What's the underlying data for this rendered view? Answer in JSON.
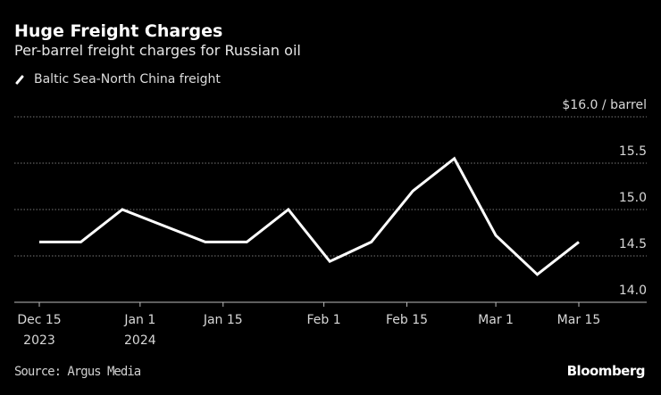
{
  "header": {
    "title": "Huge Freight Charges",
    "subtitle": "Per-barrel freight charges for Russian oil"
  },
  "footer": {
    "source": "Source: Argus Media",
    "logo": "Bloomberg"
  },
  "colors": {
    "background": "#000000",
    "line": "#ffffff",
    "grid": "#666666"
  },
  "chart_data": {
    "type": "line",
    "title": "Huge Freight Charges",
    "subtitle": "Per-barrel freight charges for Russian oil",
    "legend_position": "top-left",
    "grid": true,
    "y_axis_side": "right",
    "ylim": [
      14.0,
      16.0
    ],
    "y_ticks": [
      {
        "value": 16.0,
        "label": "$16.0 / barrel"
      },
      {
        "value": 15.5,
        "label": "15.5"
      },
      {
        "value": 15.0,
        "label": "15.0"
      },
      {
        "value": 14.5,
        "label": "14.5"
      },
      {
        "value": 14.0,
        "label": "14.0"
      }
    ],
    "x_ticks": [
      {
        "date": "2023-12-15",
        "label": "Dec 15",
        "sublabel": "2023"
      },
      {
        "date": "2024-01-01",
        "label": "Jan 1",
        "sublabel": "2024"
      },
      {
        "date": "2024-01-15",
        "label": "Jan 15",
        "sublabel": ""
      },
      {
        "date": "2024-02-01",
        "label": "Feb 1",
        "sublabel": ""
      },
      {
        "date": "2024-02-15",
        "label": "Feb 15",
        "sublabel": ""
      },
      {
        "date": "2024-03-01",
        "label": "Mar 1",
        "sublabel": ""
      },
      {
        "date": "2024-03-15",
        "label": "Mar 15",
        "sublabel": ""
      }
    ],
    "xlim": [
      "2023-12-15",
      "2024-03-15"
    ],
    "series": [
      {
        "name": "Baltic Sea-North China freight",
        "color": "#ffffff",
        "x": [
          "2023-12-15",
          "2023-12-22",
          "2023-12-29",
          "2024-01-12",
          "2024-01-19",
          "2024-01-26",
          "2024-02-02",
          "2024-02-09",
          "2024-02-16",
          "2024-02-23",
          "2024-03-01",
          "2024-03-08",
          "2024-03-15"
        ],
        "y": [
          14.65,
          14.65,
          15.0,
          14.65,
          14.65,
          15.0,
          14.44,
          14.65,
          15.2,
          15.55,
          14.72,
          14.3,
          14.65
        ]
      }
    ]
  }
}
